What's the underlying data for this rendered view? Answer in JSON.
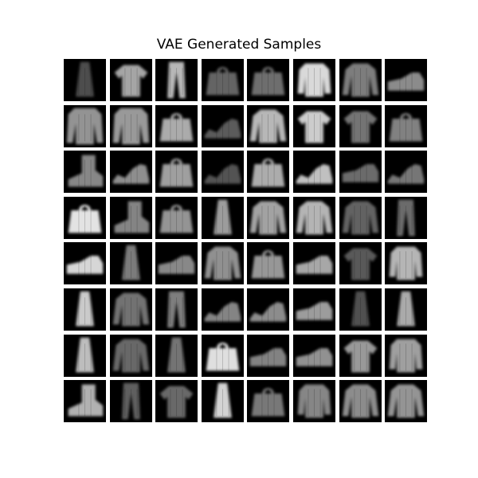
{
  "figure": {
    "title": "VAE Generated Samples",
    "background_color": "#ffffff",
    "grid_line_color": "#ffffff",
    "tile_background_color": "#000000"
  },
  "grid": {
    "rows": 8,
    "cols": 8,
    "samples": [
      [
        "dress",
        "tshirt",
        "trouser",
        "bag",
        "bag",
        "shirt",
        "pullover",
        "sneaker"
      ],
      [
        "coat",
        "coat",
        "bag",
        "sandal",
        "pullover",
        "tshirt",
        "tshirt",
        "bag"
      ],
      [
        "ankle-boot",
        "sandal",
        "bag",
        "sandal",
        "bag",
        "sandal",
        "sneaker",
        "sandal"
      ],
      [
        "bag",
        "ankle-boot",
        "bag",
        "dress",
        "pullover",
        "pullover",
        "pullover",
        "trouser"
      ],
      [
        "sneaker",
        "dress",
        "sneaker",
        "pullover",
        "bag",
        "sneaker",
        "tshirt",
        "shirt"
      ],
      [
        "dress",
        "pullover",
        "trouser",
        "sandal",
        "sandal",
        "sneaker",
        "dress",
        "dress"
      ],
      [
        "dress",
        "pullover",
        "dress",
        "bag",
        "sneaker",
        "sneaker",
        "tshirt",
        "shirt"
      ],
      [
        "ankle-boot",
        "trouser",
        "tshirt",
        "dress",
        "bag",
        "shirt",
        "pullover",
        "pullover"
      ]
    ]
  }
}
